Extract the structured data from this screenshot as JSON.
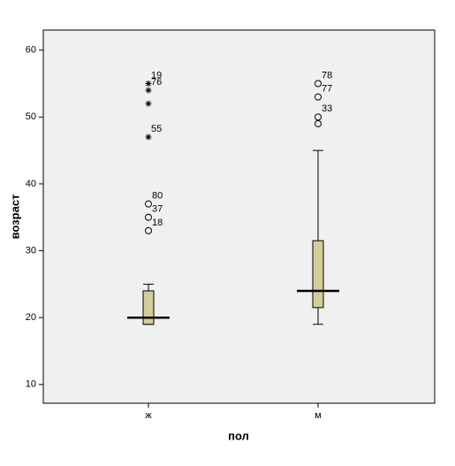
{
  "chart_data": {
    "type": "box",
    "x_label": "пол",
    "y_label": "возраст",
    "categories": [
      "ж",
      "м"
    ],
    "box_color": "#d3ce97",
    "background": "#f0f0f0",
    "ylim": [
      7.2,
      63.0
    ],
    "yticks": [
      10,
      20,
      30,
      40,
      50,
      60
    ],
    "series": [
      {
        "min": 19,
        "q1": 19,
        "median": 20,
        "q3": 24,
        "max": 25,
        "outliers": [
          37,
          35,
          33
        ],
        "outlier_labels": [
          "80",
          "37",
          "18"
        ],
        "extremes": [
          55,
          54,
          52,
          47
        ],
        "extreme_labels": [
          "19",
          "76",
          null,
          "55"
        ]
      },
      {
        "min": 19,
        "q1": 21.5,
        "median": 24,
        "q3": 31.5,
        "max": 45,
        "outliers": [
          55,
          53,
          50,
          49
        ],
        "outlier_labels": [
          "78",
          "77",
          "33",
          null
        ],
        "extremes": [],
        "extreme_labels": []
      }
    ]
  }
}
